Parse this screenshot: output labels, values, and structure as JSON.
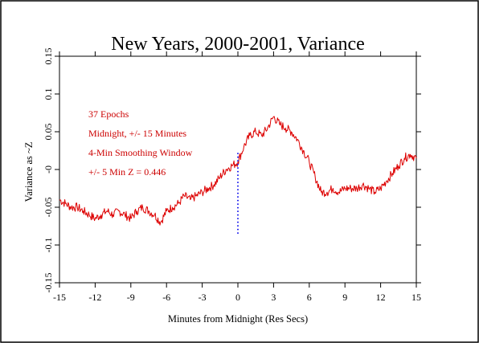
{
  "chart_data": {
    "type": "line",
    "title": "New Years, 2000-2001, Variance",
    "xlabel": "Minutes from Midnight (Res Secs)",
    "ylabel": "Variance as ~Z",
    "xlim": [
      -15,
      15
    ],
    "ylim": [
      -0.15,
      0.15
    ],
    "x_ticks": [
      -15,
      -12,
      -9,
      -6,
      -3,
      0,
      3,
      6,
      9,
      12,
      15
    ],
    "x_tick_labels": [
      "-15",
      "-12",
      "-9",
      "-6",
      "-3",
      "0",
      "3",
      "6",
      "9",
      "12",
      "15"
    ],
    "y_ticks": [
      -0.15,
      -0.1,
      -0.05,
      0,
      0.05,
      0.1,
      0.15
    ],
    "y_tick_labels": [
      "-0.15",
      "-0.1",
      "-0.05",
      "-0",
      "0.05",
      "0.1",
      "0.15"
    ],
    "grid": false,
    "annotations": [
      "37 Epochs",
      "Midnight, +/- 15 Minutes",
      "4-Min Smoothing Window",
      "+/- 5 Min Z = 0.446"
    ],
    "colors": {
      "series": "#dd0000",
      "annotation": "#cc0000",
      "marker": "#2222ee",
      "axis": "#000000"
    },
    "series": [
      {
        "color": "#dd0000",
        "x": [
          -15,
          -14.5,
          -14,
          -13.5,
          -13,
          -12.5,
          -12,
          -11.5,
          -11,
          -10.5,
          -10,
          -9.5,
          -9,
          -8.5,
          -8,
          -7.5,
          -7,
          -6.5,
          -6,
          -5.5,
          -5,
          -4.5,
          -4,
          -3.5,
          -3,
          -2.5,
          -2,
          -1.5,
          -1,
          -0.5,
          0,
          0.5,
          1,
          1.5,
          2,
          2.5,
          3,
          3.5,
          4,
          4.5,
          5,
          5.5,
          6,
          6.5,
          7,
          7.5,
          8,
          8.5,
          9,
          9.5,
          10,
          10.5,
          11,
          11.5,
          12,
          12.5,
          13,
          13.5,
          14,
          14.5,
          15
        ],
        "values": [
          -0.04,
          -0.045,
          -0.05,
          -0.05,
          -0.055,
          -0.06,
          -0.065,
          -0.06,
          -0.055,
          -0.06,
          -0.055,
          -0.06,
          -0.065,
          -0.055,
          -0.05,
          -0.055,
          -0.06,
          -0.07,
          -0.055,
          -0.05,
          -0.045,
          -0.035,
          -0.04,
          -0.035,
          -0.03,
          -0.025,
          -0.02,
          -0.01,
          0.0,
          0.005,
          0.01,
          0.03,
          0.045,
          0.05,
          0.045,
          0.055,
          0.07,
          0.06,
          0.055,
          0.05,
          0.04,
          0.025,
          0.01,
          -0.01,
          -0.03,
          -0.03,
          -0.025,
          -0.03,
          -0.025,
          -0.025,
          -0.025,
          -0.02,
          -0.025,
          -0.03,
          -0.025,
          -0.015,
          -0.005,
          0.005,
          0.015,
          0.02,
          0.015
        ]
      },
      {
        "color": "#2222ee",
        "style": "dotted",
        "x": [
          0,
          0
        ],
        "values": [
          -0.085,
          0.025
        ]
      }
    ]
  }
}
